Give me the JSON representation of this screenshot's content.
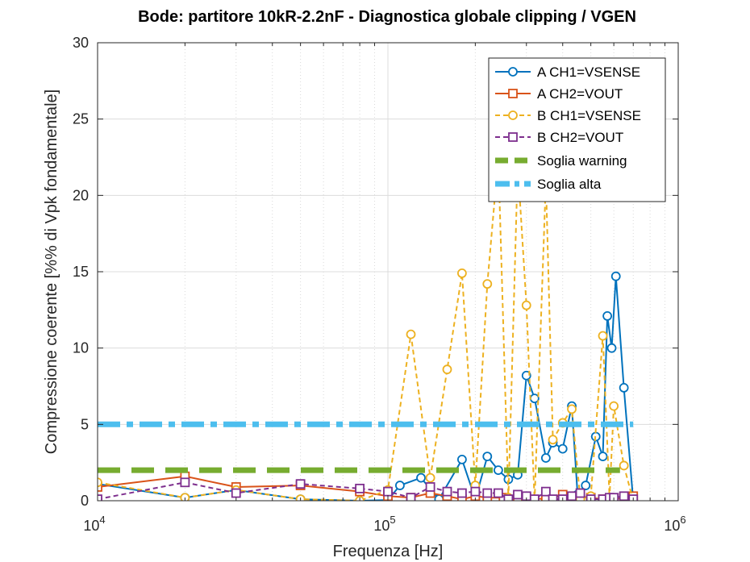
{
  "chart_data": {
    "type": "line",
    "title": "Bode: partitore 10kR-2.2nF - Diagnostica globale clipping / VGEN",
    "xlabel": "Frequenza [Hz]",
    "ylabel": "Compressione coerente [%% di Vpk fondamentale]",
    "x_scale": "log",
    "xlim": [
      10000,
      1000000
    ],
    "ylim": [
      0,
      30
    ],
    "grid": true,
    "legend_position": "top-right",
    "x_ticks": [
      {
        "value": 10000,
        "base": "10",
        "exp": "4"
      },
      {
        "value": 100000,
        "base": "10",
        "exp": "5"
      },
      {
        "value": 1000000,
        "base": "10",
        "exp": "6"
      }
    ],
    "y_ticks": [
      0,
      5,
      10,
      15,
      20,
      25,
      30
    ],
    "series": [
      {
        "name": "A CH1=VSENSE",
        "color": "#0072BD",
        "dash": "solid",
        "marker": "circle",
        "x": [
          10000,
          20000,
          30000,
          50000,
          80000,
          100000,
          110000,
          130000,
          150000,
          180000,
          200000,
          220000,
          240000,
          260000,
          280000,
          300000,
          320000,
          350000,
          370000,
          400000,
          430000,
          450000,
          480000,
          520000,
          550000,
          570000,
          590000,
          610000,
          650000,
          700000
        ],
        "y": [
          1.1,
          0.2,
          0.7,
          0.1,
          0.0,
          0.05,
          1.0,
          1.5,
          0.1,
          2.7,
          0.1,
          2.9,
          2.0,
          1.4,
          1.7,
          8.2,
          6.7,
          2.8,
          3.8,
          3.4,
          6.2,
          0.4,
          1.0,
          4.2,
          2.9,
          12.1,
          10.0,
          14.7,
          7.4,
          0.0
        ]
      },
      {
        "name": "A CH2=VOUT",
        "color": "#D95319",
        "dash": "solid",
        "marker": "square",
        "x": [
          10000,
          20000,
          30000,
          50000,
          80000,
          100000,
          120000,
          140000,
          160000,
          180000,
          200000,
          220000,
          250000,
          280000,
          300000,
          350000,
          400000,
          450000,
          500000,
          550000,
          600000,
          650000,
          700000
        ],
        "y": [
          0.9,
          1.6,
          0.9,
          1.0,
          0.6,
          0.3,
          0.2,
          0.5,
          0.3,
          0.1,
          0.3,
          0.2,
          0.2,
          0.1,
          0.2,
          0.1,
          0.4,
          0.3,
          0.2,
          0.1,
          0.1,
          0.2,
          0.3
        ]
      },
      {
        "name": "B CH1=VSENSE",
        "color": "#EDB120",
        "dash": "dashed",
        "marker": "circle",
        "x": [
          10000,
          20000,
          30000,
          50000,
          80000,
          100000,
          120000,
          140000,
          160000,
          180000,
          200000,
          220000,
          240000,
          260000,
          280000,
          300000,
          320000,
          350000,
          370000,
          400000,
          430000,
          460000,
          500000,
          550000,
          580000,
          600000,
          650000,
          700000
        ],
        "y": [
          1.2,
          0.2,
          0.7,
          0.1,
          0.0,
          0.7,
          10.9,
          1.5,
          8.6,
          14.9,
          1.0,
          14.2,
          22.5,
          0.2,
          22.0,
          12.8,
          0.0,
          21.0,
          4.0,
          5.1,
          6.0,
          0.1,
          0.3,
          10.8,
          0.2,
          6.2,
          2.3,
          0.0
        ]
      },
      {
        "name": "B CH2=VOUT",
        "color": "#7E2F8E",
        "dash": "dashed",
        "marker": "square",
        "x": [
          10000,
          20000,
          30000,
          50000,
          80000,
          100000,
          120000,
          140000,
          160000,
          180000,
          200000,
          220000,
          240000,
          260000,
          280000,
          300000,
          320000,
          350000,
          370000,
          400000,
          430000,
          460000,
          500000,
          550000,
          580000,
          600000,
          650000,
          700000
        ],
        "y": [
          0.1,
          1.2,
          0.5,
          1.1,
          0.8,
          0.6,
          0.2,
          0.9,
          0.6,
          0.5,
          0.6,
          0.5,
          0.5,
          0.1,
          0.4,
          0.3,
          0.1,
          0.6,
          0.1,
          0.1,
          0.3,
          0.5,
          0.1,
          0.1,
          0.2,
          0.2,
          0.3,
          0.1
        ]
      },
      {
        "name": "Soglia warning",
        "color": "#77AC30",
        "dash": "thick-dashed",
        "marker": "none",
        "x": [
          10000,
          630000
        ],
        "y": [
          2,
          2
        ]
      },
      {
        "name": "Soglia alta",
        "color": "#4DBEEE",
        "dash": "thick-dashdot",
        "marker": "none",
        "x": [
          10000,
          700000
        ],
        "y": [
          5,
          5
        ]
      }
    ]
  }
}
